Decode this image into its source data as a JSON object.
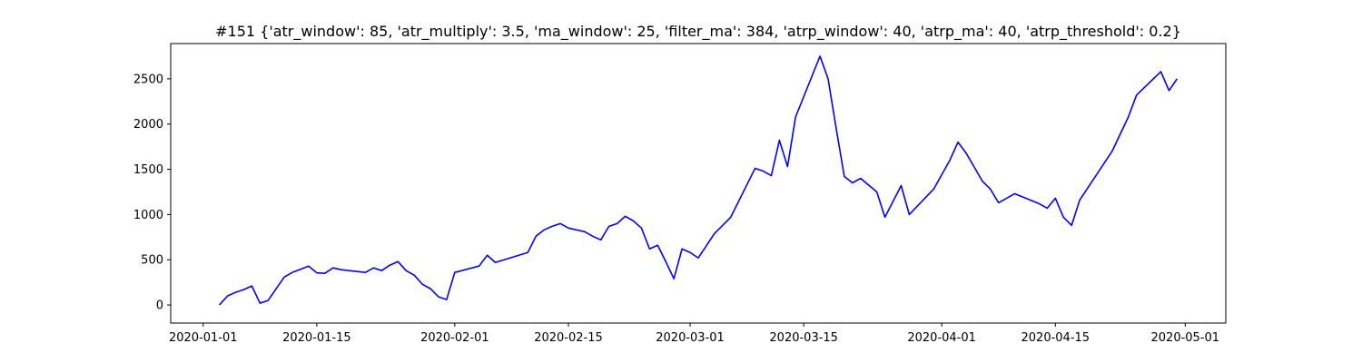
{
  "chart_data": {
    "type": "line",
    "title": "#151 {'atr_window': 85, 'atr_multiply': 3.5, 'ma_window': 25, 'filter_ma': 384, 'atrp_window': 40, 'atrp_ma': 40, 'atrp_threshold': 0.2}",
    "color": "#0000ff",
    "x": [
      "2020-01-03",
      "2020-01-04",
      "2020-01-05",
      "2020-01-06",
      "2020-01-07",
      "2020-01-08",
      "2020-01-09",
      "2020-01-11",
      "2020-01-12",
      "2020-01-14",
      "2020-01-15",
      "2020-01-16",
      "2020-01-17",
      "2020-01-18",
      "2020-01-21",
      "2020-01-22",
      "2020-01-23",
      "2020-01-24",
      "2020-01-25",
      "2020-01-26",
      "2020-01-27",
      "2020-01-28",
      "2020-01-29",
      "2020-01-30",
      "2020-01-31",
      "2020-02-01",
      "2020-02-04",
      "2020-02-05",
      "2020-02-06",
      "2020-02-10",
      "2020-02-11",
      "2020-02-12",
      "2020-02-13",
      "2020-02-14",
      "2020-02-15",
      "2020-02-17",
      "2020-02-18",
      "2020-02-19",
      "2020-02-20",
      "2020-02-21",
      "2020-02-22",
      "2020-02-23",
      "2020-02-24",
      "2020-02-25",
      "2020-02-26",
      "2020-02-27",
      "2020-02-28",
      "2020-02-29",
      "2020-03-01",
      "2020-03-02",
      "2020-03-04",
      "2020-03-06",
      "2020-03-09",
      "2020-03-10",
      "2020-03-11",
      "2020-03-12",
      "2020-03-13",
      "2020-03-14",
      "2020-03-17",
      "2020-03-18",
      "2020-03-19",
      "2020-03-20",
      "2020-03-21",
      "2020-03-22",
      "2020-03-24",
      "2020-03-25",
      "2020-03-27",
      "2020-03-28",
      "2020-03-31",
      "2020-04-02",
      "2020-04-03",
      "2020-04-04",
      "2020-04-06",
      "2020-04-07",
      "2020-04-08",
      "2020-04-10",
      "2020-04-13",
      "2020-04-14",
      "2020-04-15",
      "2020-04-16",
      "2020-04-17",
      "2020-04-18",
      "2020-04-22",
      "2020-04-24",
      "2020-04-25",
      "2020-04-28",
      "2020-04-29",
      "2020-04-30"
    ],
    "values": [
      0,
      100,
      140,
      170,
      210,
      20,
      50,
      310,
      360,
      430,
      355,
      350,
      410,
      390,
      360,
      410,
      380,
      440,
      480,
      380,
      330,
      230,
      180,
      90,
      60,
      360,
      430,
      550,
      470,
      580,
      760,
      830,
      870,
      900,
      850,
      810,
      760,
      720,
      870,
      900,
      980,
      930,
      850,
      620,
      660,
      480,
      290,
      620,
      580,
      520,
      790,
      970,
      1510,
      1480,
      1430,
      1820,
      1530,
      2080,
      2750,
      2500,
      1950,
      1420,
      1350,
      1400,
      1250,
      970,
      1320,
      1000,
      1280,
      1600,
      1800,
      1680,
      1370,
      1280,
      1130,
      1230,
      1120,
      1070,
      1180,
      970,
      880,
      1160,
      1700,
      2080,
      2320,
      2580,
      2370,
      2500
    ],
    "xlim": [
      "2019-12-28",
      "2020-05-06"
    ],
    "xticks": [
      "2020-01-01",
      "2020-01-15",
      "2020-02-01",
      "2020-02-15",
      "2020-03-01",
      "2020-03-15",
      "2020-04-01",
      "2020-04-15",
      "2020-05-01"
    ],
    "ylim": [
      -200,
      2890
    ],
    "yticks": [
      0,
      500,
      1000,
      1500,
      2000,
      2500
    ],
    "grid": false
  }
}
